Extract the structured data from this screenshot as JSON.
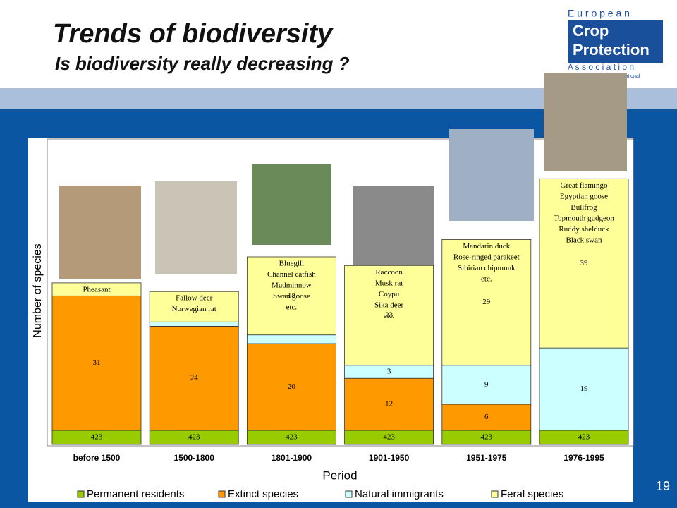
{
  "chart_data": {
    "type": "bar",
    "stacked": true,
    "title": "Trends of biodiversity",
    "subtitle": "Is biodiversity really decreasing ?",
    "x_label": "Period",
    "y_label": "Number of species",
    "categories": [
      "before 1500",
      "1500-1800",
      "1801-1900",
      "1901-1950",
      "1951-1975",
      "1976-1995"
    ],
    "series": [
      {
        "name": "Permanent residents",
        "color": "#99cc00",
        "values": [
          423,
          423,
          423,
          423,
          423,
          423
        ],
        "value_labels": [
          "423",
          "423",
          "423",
          "423",
          "423",
          "423"
        ]
      },
      {
        "name": "Extinct species",
        "color": "#ff9900",
        "values": [
          31,
          24,
          20,
          12,
          6,
          null
        ],
        "value_labels": [
          "31",
          "24",
          "20",
          "12",
          "6",
          null
        ]
      },
      {
        "name": "Natural immigrants",
        "color": "#ccffff",
        "values": [
          null,
          1,
          2,
          3,
          9,
          19
        ],
        "value_labels": [
          null,
          null,
          null,
          "3",
          "9",
          "19"
        ]
      },
      {
        "name": "Feral species",
        "color": "#ffff99",
        "values": [
          3,
          7,
          18,
          23,
          29,
          39
        ],
        "value_labels": [
          null,
          null,
          "18",
          "23",
          "29",
          "39"
        ]
      }
    ],
    "annotations": [
      [
        "Pheasant"
      ],
      [
        "Fallow deer",
        "Norwegian rat"
      ],
      [
        "Bluegill",
        "Channel catfish",
        "Mudminnow",
        "Swan goose",
        "etc."
      ],
      [
        "Raccoon",
        "Musk rat",
        "Coypu",
        "Sika deer",
        "etc."
      ],
      [
        "Mandarin duck",
        "Rose-ringed parakeet",
        "Sibirian chipmunk",
        "etc."
      ],
      [
        "Great flamingo",
        "Egyptian goose",
        "Bullfrog",
        "Topmouth gudgeon",
        "Ruddy shelduck",
        "Black swan"
      ]
    ],
    "legend": "bottom",
    "logo": {
      "line1": "E u r o p e a n",
      "line2": "Crop",
      "line3": "Protection",
      "line4": "A s s o c i a t i o n",
      "line5": "member of CropLife International"
    },
    "page_number": "19"
  }
}
